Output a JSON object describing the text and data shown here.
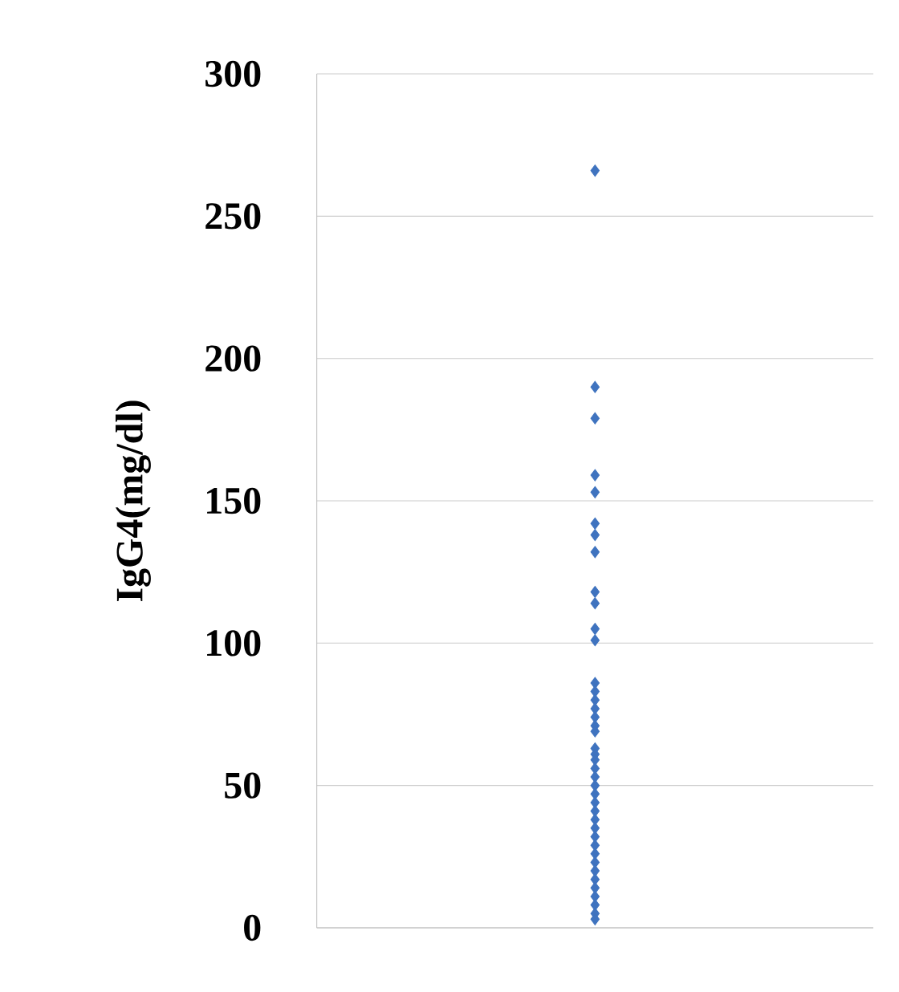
{
  "chart_data": {
    "type": "scatter",
    "ylabel": "IgG4(mg/dl)",
    "categories": [
      null
    ],
    "series": [
      {
        "values": [
          266
        ]
      },
      {
        "values": [
          190
        ]
      },
      {
        "values": [
          179
        ]
      },
      {
        "values": [
          159
        ]
      },
      {
        "values": [
          153
        ]
      },
      {
        "values": [
          142
        ]
      },
      {
        "values": [
          138
        ]
      },
      {
        "values": [
          132
        ]
      },
      {
        "values": [
          118
        ]
      },
      {
        "values": [
          114
        ]
      },
      {
        "values": [
          105
        ]
      },
      {
        "values": [
          101
        ]
      },
      {
        "values": [
          86
        ]
      },
      {
        "values": [
          83
        ]
      },
      {
        "values": [
          80
        ]
      },
      {
        "values": [
          77
        ]
      },
      {
        "values": [
          74
        ]
      },
      {
        "values": [
          71
        ]
      },
      {
        "values": [
          69
        ]
      },
      {
        "values": [
          63
        ]
      },
      {
        "values": [
          61
        ]
      },
      {
        "values": [
          59
        ]
      },
      {
        "values": [
          56
        ]
      },
      {
        "values": [
          53
        ]
      },
      {
        "values": [
          50
        ]
      },
      {
        "values": [
          47
        ]
      },
      {
        "values": [
          44
        ]
      },
      {
        "values": [
          41
        ]
      },
      {
        "values": [
          38
        ]
      },
      {
        "values": [
          35
        ]
      },
      {
        "values": [
          32
        ]
      },
      {
        "values": [
          29
        ]
      },
      {
        "values": [
          26
        ]
      },
      {
        "values": [
          23
        ]
      },
      {
        "values": [
          20
        ]
      },
      {
        "values": [
          17
        ]
      },
      {
        "values": [
          14
        ]
      },
      {
        "values": [
          11
        ]
      },
      {
        "values": [
          8
        ]
      },
      {
        "values": [
          5
        ]
      },
      {
        "values": [
          3
        ]
      }
    ],
    "color": "#3f73bf",
    "marker": "diamond",
    "ylim": [
      0,
      300
    ],
    "yticks": [
      0,
      50,
      100,
      150,
      200,
      250,
      300
    ],
    "grid": "y"
  }
}
